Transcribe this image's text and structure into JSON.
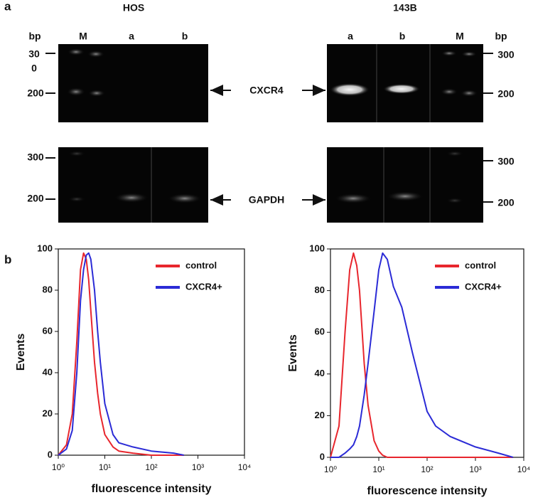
{
  "panel_a": {
    "label": "a",
    "hos": {
      "title": "HOS",
      "lanes": [
        "M",
        "a",
        "b"
      ],
      "bp": "bp",
      "top_sizes": [
        "30",
        "0",
        "200"
      ],
      "bottom_sizes": [
        "300",
        "200"
      ]
    },
    "b143": {
      "title": "143B",
      "lanes": [
        "a",
        "b",
        "M"
      ],
      "bp": "bp",
      "top_sizes": [
        "300",
        "200"
      ],
      "bottom_sizes": [
        "300",
        "200"
      ]
    },
    "genes": [
      "CXCR4",
      "GAPDH"
    ]
  },
  "panel_b": {
    "label": "b"
  },
  "chart_data": [
    {
      "type": "line",
      "xlabel": "fluorescence intensity",
      "ylabel": "Events",
      "xscale": "log",
      "x": [
        1,
        1.5,
        2,
        2.5,
        3,
        3.5,
        4,
        4.5,
        5,
        6,
        7,
        8,
        10,
        15,
        20,
        40,
        100,
        300,
        500
      ],
      "series": [
        {
          "name": "control",
          "color": "#e8262d",
          "values": [
            0,
            5,
            20,
            55,
            90,
            98,
            95,
            85,
            70,
            45,
            30,
            20,
            10,
            4,
            2,
            1,
            0,
            0,
            0
          ]
        },
        {
          "name": "CXCR4+",
          "color": "#2b2bd6",
          "values": [
            0,
            3,
            12,
            40,
            75,
            90,
            97,
            98,
            95,
            80,
            60,
            45,
            25,
            10,
            6,
            4,
            2,
            1,
            0
          ]
        }
      ],
      "xlim": [
        1,
        10000
      ],
      "xticks": [
        {
          "value": 1,
          "label": "10⁰"
        },
        {
          "value": 10,
          "label": "10¹"
        },
        {
          "value": 100,
          "label": "10²"
        },
        {
          "value": 1000,
          "label": "10³"
        },
        {
          "value": 10000,
          "label": "10⁴"
        }
      ],
      "ylim": [
        0,
        100
      ],
      "yticks": [
        0,
        20,
        40,
        60,
        80,
        100
      ],
      "legend": "upper right"
    },
    {
      "type": "line",
      "xlabel": "fluorescence intensity",
      "ylabel": "Events",
      "xscale": "log",
      "x": [
        1,
        1.5,
        2,
        2.5,
        3,
        3.5,
        4,
        5,
        6,
        8,
        10,
        12,
        15,
        20,
        30,
        50,
        100,
        150,
        300,
        1000,
        3000,
        6000
      ],
      "series": [
        {
          "name": "control",
          "color": "#e8262d",
          "values": [
            0,
            15,
            60,
            90,
            98,
            92,
            80,
            45,
            25,
            8,
            3,
            1,
            0,
            0,
            0,
            0,
            0,
            0,
            0,
            0,
            0,
            0
          ]
        },
        {
          "name": "CXCR4+",
          "color": "#2b2bd6",
          "values": [
            0,
            0,
            2,
            4,
            6,
            10,
            15,
            30,
            45,
            70,
            90,
            98,
            95,
            82,
            72,
            50,
            22,
            15,
            10,
            5,
            2,
            0
          ]
        }
      ],
      "xlim": [
        1,
        10000
      ],
      "xticks": [
        {
          "value": 1,
          "label": "10⁰"
        },
        {
          "value": 10,
          "label": "10¹"
        },
        {
          "value": 100,
          "label": "10²"
        },
        {
          "value": 1000,
          "label": "10³"
        },
        {
          "value": 10000,
          "label": "10⁴"
        }
      ],
      "ylim": [
        0,
        100
      ],
      "yticks": [
        0,
        20,
        40,
        60,
        80,
        100
      ],
      "legend": "upper right"
    }
  ]
}
